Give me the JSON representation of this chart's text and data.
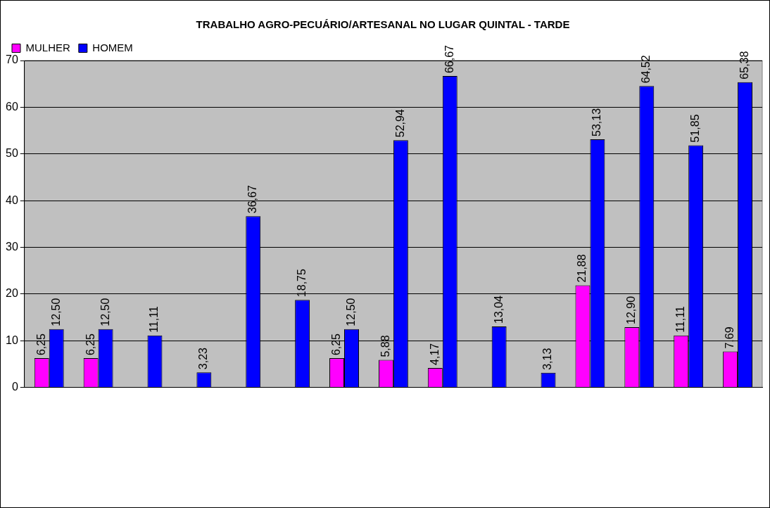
{
  "chart_data": {
    "type": "bar",
    "title": "TRABALHO AGRO-PECUÁRIO/ARTESANAL NO LUGAR QUINTAL - TARDE",
    "categories": [
      null,
      null,
      null,
      null,
      null,
      null,
      null,
      null,
      null,
      null,
      null,
      null,
      null,
      null,
      null
    ],
    "series": [
      {
        "name": "MULHER",
        "color": "#ff00ff",
        "values": [
          6.25,
          6.25,
          null,
          null,
          null,
          null,
          6.25,
          5.88,
          4.17,
          null,
          null,
          21.88,
          12.9,
          11.11,
          7.69
        ],
        "value_labels": [
          "6,25",
          "6,25",
          null,
          null,
          null,
          null,
          "6,25",
          "5,88",
          "4,17",
          null,
          null,
          "21,88",
          "12,90",
          "11,11",
          "7,69"
        ]
      },
      {
        "name": "HOMEM",
        "color": "#0000ff",
        "values": [
          12.5,
          12.5,
          11.11,
          3.23,
          36.67,
          18.75,
          12.5,
          52.94,
          66.67,
          13.04,
          3.13,
          53.13,
          64.52,
          51.85,
          65.38
        ],
        "value_labels": [
          "12,50",
          "12,50",
          "11,11",
          "3,23",
          "36,67",
          "18,75",
          "12,50",
          "52,94",
          "66,67",
          "13,04",
          "3,13",
          "53,13",
          "64,52",
          "51,85",
          "65,38"
        ]
      }
    ],
    "ylim": [
      0,
      70
    ],
    "yticks": [
      0,
      10,
      20,
      30,
      40,
      50,
      60,
      70
    ],
    "grid": "y",
    "legend": "top left"
  }
}
